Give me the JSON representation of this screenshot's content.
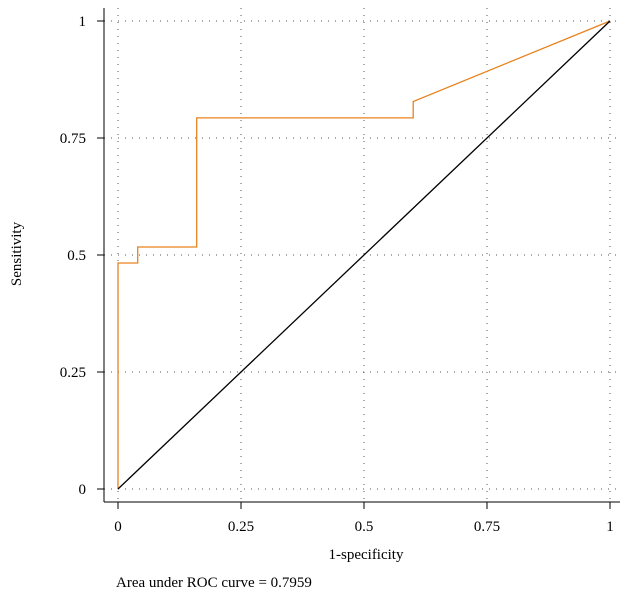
{
  "chart_data": {
    "type": "line",
    "title": "",
    "xlabel": "1-specificity",
    "ylabel": "Sensitivity",
    "xlim": [
      0,
      1
    ],
    "ylim": [
      0,
      1
    ],
    "x_ticks": [
      "0",
      "0.25",
      "0.5",
      "0.75",
      "1"
    ],
    "y_ticks": [
      "0",
      "0.25",
      "0.5",
      "0.75",
      "1"
    ],
    "grid": "dotted",
    "series": [
      {
        "color": "#e8821e",
        "x": [
          0,
          0,
          0.04,
          0.04,
          0.16,
          0.16,
          0.6,
          0.6,
          1
        ],
        "y": [
          0,
          0.483,
          0.483,
          0.517,
          0.517,
          0.793,
          0.793,
          0.828,
          1
        ]
      },
      {
        "color": "#000000",
        "x": [
          0,
          1
        ],
        "y": [
          0,
          1
        ]
      }
    ]
  },
  "footer": {
    "auc_text": "Area under ROC curve = 0.7959"
  }
}
